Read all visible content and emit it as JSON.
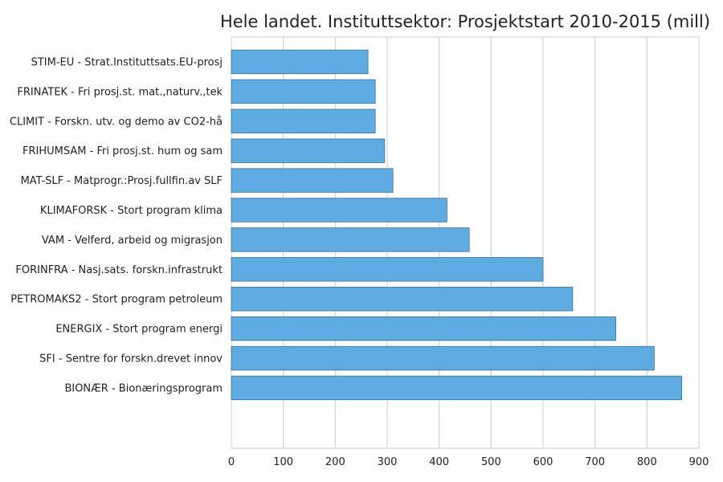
{
  "chart_data": {
    "type": "bar",
    "orientation": "horizontal",
    "title": "Hele landet. Instituttsektor: Prosjektstart 2010-2015 (mill)",
    "xlabel": "",
    "ylabel": "",
    "xlim": [
      0,
      900
    ],
    "x_ticks": [
      0,
      100,
      200,
      300,
      400,
      500,
      600,
      700,
      800,
      900
    ],
    "grid": true,
    "bar_color": "#5DADE2",
    "categories": [
      "STIM-EU - Strat.Instituttsats.EU-prosj",
      "FRINATEK - Fri prosj.st. mat.,naturv.,tek",
      "CLIMIT - Forskn. utv. og demo av CO2-hå",
      "FRIHUMSAM - Fri prosj.st. hum og sam",
      "MAT-SLF - Matprogr.:Prosj.fullfin.av SLF",
      "KLIMAFORSK - Stort program klima",
      "VAM - Velferd, arbeid og migrasjon",
      "FORINFRA - Nasj.sats. forskn.infrastrukt",
      "PETROMAKS2 - Stort program petroleum",
      "ENERGIX - Stort program energi",
      "SFI - Sentre for forskn.drevet innov",
      "BIONÆR - Bionæringsprogram"
    ],
    "values": [
      263,
      277,
      277,
      295,
      311,
      415,
      458,
      600,
      657,
      740,
      814,
      867
    ]
  }
}
